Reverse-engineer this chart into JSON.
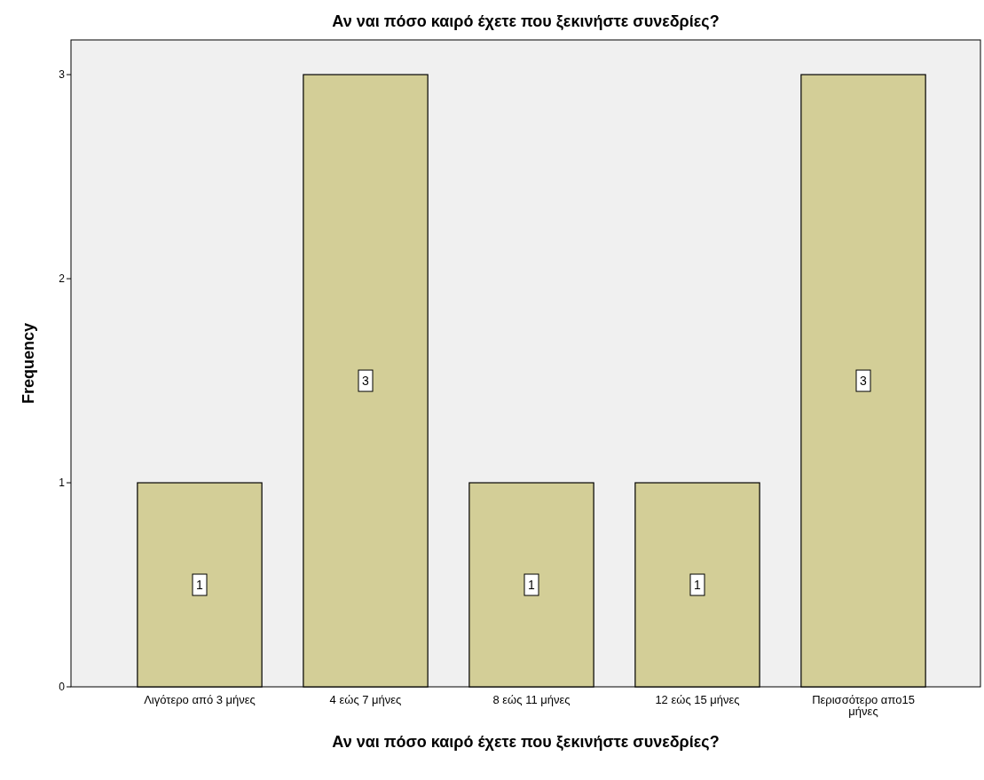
{
  "chart_data": {
    "type": "bar",
    "title": "Αν ναι πόσο καιρό έχετε που ξεκινήστε συνεδρίες?",
    "xlabel": "Αν ναι πόσο καιρό έχετε που ξεκινήστε συνεδρίες?",
    "ylabel": "Frequency",
    "categories": [
      "Λιγότερο από 3 μήνες",
      "4 εώς 7 μήνες",
      "8 εώς 11 μήνες",
      "12 εώς 15 μήνες",
      "Περισσότερο απο15 μήνες"
    ],
    "values": [
      1,
      3,
      1,
      1,
      3
    ],
    "color": "#d3ce97",
    "ylim": [
      0,
      3.17
    ],
    "yticks": [
      0,
      1,
      2,
      3
    ],
    "grid": false,
    "data_labels": true
  }
}
